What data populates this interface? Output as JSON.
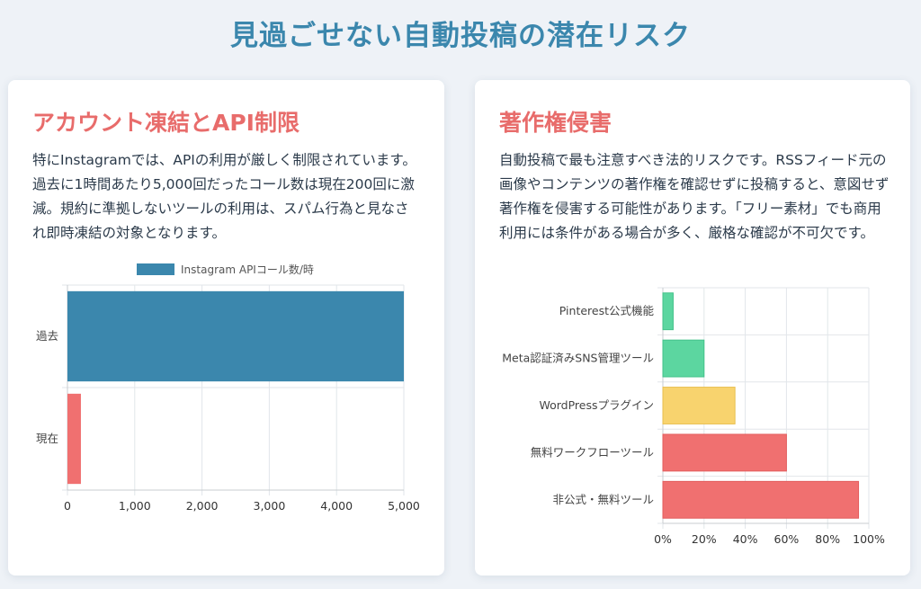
{
  "page": {
    "title": "見過ごせない自動投稿の潜在リスク"
  },
  "left_card": {
    "title": "アカウント凍結とAPI制限",
    "body": "特にInstagramでは、APIの利用が厳しく制限されています。過去に1時間あたり5,000回だったコール数は現在200回に激減。規約に準拠しないツールの利用は、スパム行為と見なされ即時凍結の対象となります。"
  },
  "right_card": {
    "title": "著作権侵害",
    "body": "自動投稿で最も注意すべき法的リスクです。RSSフィード元の画像やコンテンツの著作権を確認せずに投稿すると、意図せず著作権を侵害する可能性があります。「フリー素材」でも商用利用には条件がある場合が多く、厳格な確認が不可欠です。"
  },
  "chart_data": [
    {
      "type": "bar",
      "orientation": "horizontal",
      "categories": [
        "過去",
        "現在"
      ],
      "series": [
        {
          "name": "Instagram APIコール数/時",
          "values": [
            5000,
            200
          ]
        }
      ],
      "bar_colors": [
        "#3b87ad",
        "#f07070"
      ],
      "xlim": [
        0,
        5000
      ],
      "xticks": [
        0,
        1000,
        2000,
        3000,
        4000,
        5000
      ],
      "xtick_labels": [
        "0",
        "1,000",
        "2,000",
        "3,000",
        "4,000",
        "5,000"
      ],
      "legend": "top",
      "grid": true
    },
    {
      "type": "bar",
      "orientation": "horizontal",
      "categories": [
        "Pinterest公式機能",
        "Meta認証済みSNS管理ツール",
        "WordPressプラグイン",
        "無料ワークフローツール",
        "非公式・無料ツール"
      ],
      "values": [
        5,
        20,
        35,
        60,
        95
      ],
      "bar_colors": [
        "#5cd6a0",
        "#5cd6a0",
        "#f8d36e",
        "#f07070",
        "#f07070"
      ],
      "xlim": [
        0,
        100
      ],
      "xticks": [
        0,
        20,
        40,
        60,
        80,
        100
      ],
      "xtick_labels": [
        "0%",
        "20%",
        "40%",
        "60%",
        "80%",
        "100%"
      ],
      "legend": "none",
      "grid": true
    }
  ]
}
